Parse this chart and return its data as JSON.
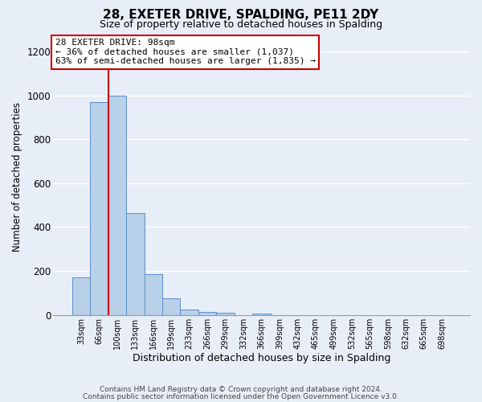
{
  "title": "28, EXETER DRIVE, SPALDING, PE11 2DY",
  "subtitle": "Size of property relative to detached houses in Spalding",
  "xlabel": "Distribution of detached houses by size in Spalding",
  "ylabel": "Number of detached properties",
  "bin_labels": [
    "33sqm",
    "66sqm",
    "100sqm",
    "133sqm",
    "166sqm",
    "199sqm",
    "233sqm",
    "266sqm",
    "299sqm",
    "332sqm",
    "366sqm",
    "399sqm",
    "432sqm",
    "465sqm",
    "499sqm",
    "532sqm",
    "565sqm",
    "598sqm",
    "632sqm",
    "665sqm",
    "698sqm"
  ],
  "bar_heights": [
    170,
    970,
    1000,
    465,
    185,
    75,
    25,
    15,
    10,
    0,
    5,
    0,
    0,
    0,
    0,
    0,
    0,
    0,
    0,
    0,
    0
  ],
  "bar_color": "#b8d0e8",
  "bar_edge_color": "#5b8dc8",
  "property_line_color": "#cc0000",
  "ylim": [
    0,
    1260
  ],
  "yticks": [
    0,
    200,
    400,
    600,
    800,
    1000,
    1200
  ],
  "annotation_title": "28 EXETER DRIVE: 98sqm",
  "annotation_line1": "← 36% of detached houses are smaller (1,037)",
  "annotation_line2": "63% of semi-detached houses are larger (1,835) →",
  "annotation_box_color": "#ffffff",
  "annotation_box_edge": "#cc0000",
  "footer_line1": "Contains HM Land Registry data © Crown copyright and database right 2024.",
  "footer_line2": "Contains public sector information licensed under the Open Government Licence v3.0.",
  "background_color": "#e8eef8",
  "grid_color": "#ffffff"
}
